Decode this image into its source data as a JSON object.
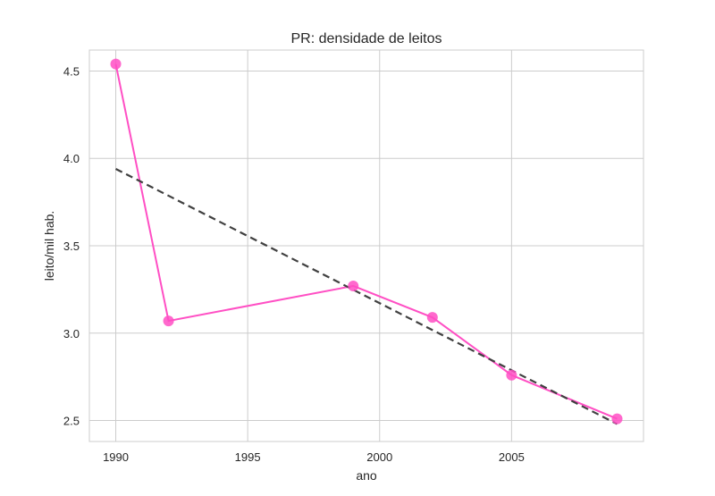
{
  "chart_data": {
    "type": "line",
    "title": "PR: densidade de leitos",
    "xlabel": "ano",
    "ylabel": "leito/mil hab.",
    "xlim": [
      1989,
      2010
    ],
    "ylim": [
      2.38,
      4.62
    ],
    "x_ticks": [
      1990,
      1995,
      2000,
      2005
    ],
    "y_ticks": [
      2.5,
      3.0,
      3.5,
      4.0,
      4.5
    ],
    "x_tick_labels": [
      "1990",
      "1995",
      "2000",
      "2005"
    ],
    "y_tick_labels": [
      "2.5",
      "3.0",
      "3.5",
      "4.0",
      "4.5"
    ],
    "grid": true,
    "series": [
      {
        "style": "line-with-markers",
        "color": "#ff4fc4",
        "x": [
          1990,
          1992,
          1999,
          2002,
          2005,
          2009
        ],
        "y": [
          4.54,
          3.07,
          3.27,
          3.09,
          2.76,
          2.51
        ]
      },
      {
        "style": "dashed-trend",
        "color": "#404040",
        "x": [
          1990,
          2009
        ],
        "y": [
          3.94,
          2.48
        ]
      }
    ]
  }
}
